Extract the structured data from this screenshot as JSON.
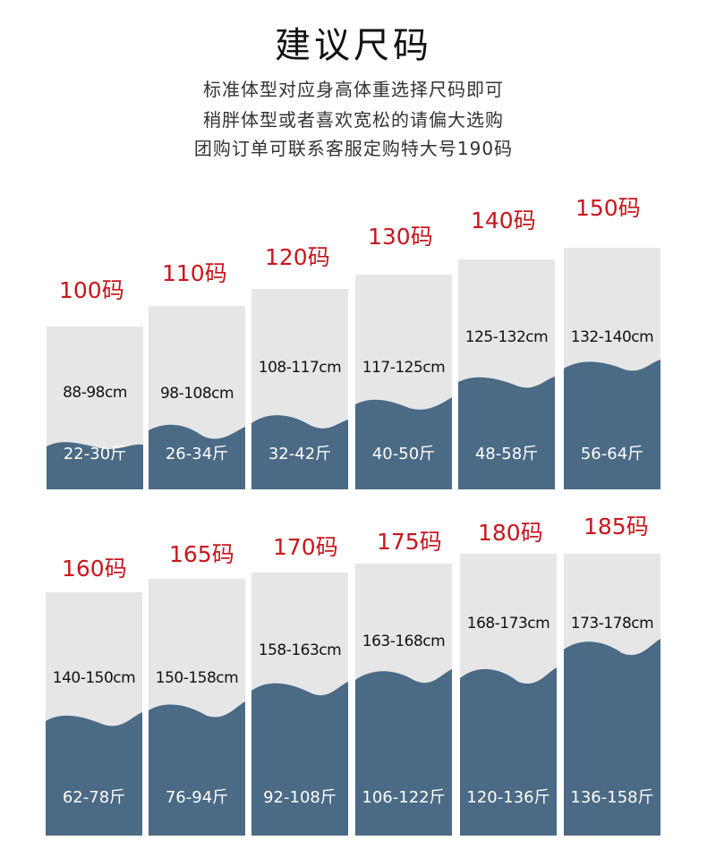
{
  "title": "建议尺码",
  "subtitle_lines": [
    "标准体型对应身高体重选择尺码即可",
    "稍胖体型或者喜欢宽松的请偏大选购",
    "团购订单可联系客服定购特大号190码"
  ],
  "colors": {
    "accent_red": "#c8161d",
    "wave_blue": "#4a6a85",
    "card_gray": "#e6e6e6"
  },
  "sizes": [
    {
      "size": "100码",
      "height": "88-98cm",
      "weight": "22-30斤"
    },
    {
      "size": "110码",
      "height": "98-108cm",
      "weight": "26-34斤"
    },
    {
      "size": "120码",
      "height": "108-117cm",
      "weight": "32-42斤"
    },
    {
      "size": "130码",
      "height": "117-125cm",
      "weight": "40-50斤"
    },
    {
      "size": "140码",
      "height": "125-132cm",
      "weight": "48-58斤"
    },
    {
      "size": "150码",
      "height": "132-140cm",
      "weight": "56-64斤"
    },
    {
      "size": "160码",
      "height": "140-150cm",
      "weight": "62-78斤"
    },
    {
      "size": "165码",
      "height": "150-158cm",
      "weight": "76-94斤"
    },
    {
      "size": "170码",
      "height": "158-163cm",
      "weight": "92-108斤"
    },
    {
      "size": "175码",
      "height": "163-168cm",
      "weight": "106-122斤"
    },
    {
      "size": "180码",
      "height": "168-173cm",
      "weight": "120-136斤"
    },
    {
      "size": "185码",
      "height": "173-178cm",
      "weight": "136-158斤"
    }
  ]
}
